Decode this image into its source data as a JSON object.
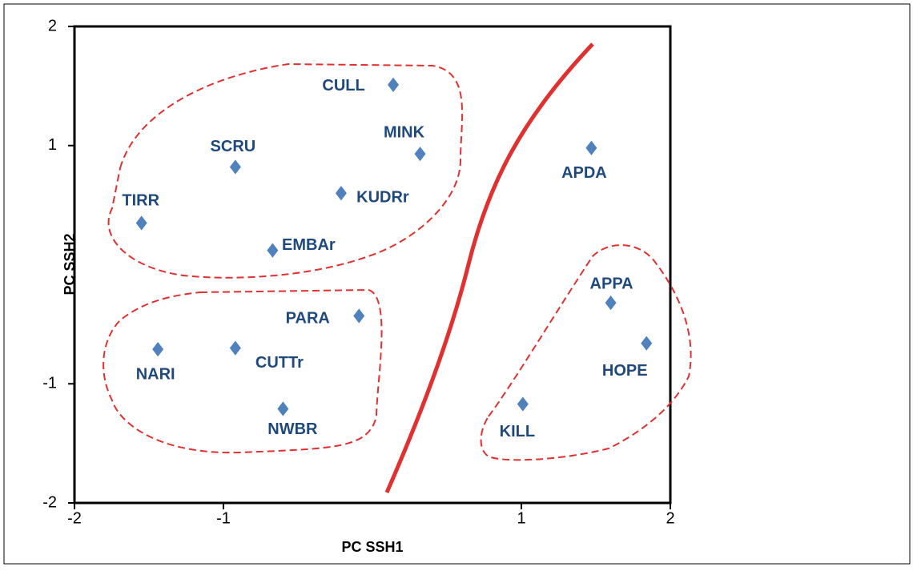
{
  "chart_data": {
    "type": "scatter",
    "x_label": "PC SSH1",
    "y_label": "PC SSH2",
    "labels": [
      "CULL",
      "MINK",
      "SCRU",
      "KUDRr",
      "TIRR",
      "EMBAr",
      "PARA",
      "NARI",
      "CUTTr",
      "NWBR",
      "APDA",
      "APPA",
      "HOPE",
      "KILL"
    ],
    "x": [
      0.14,
      0.32,
      -0.92,
      -0.21,
      -1.55,
      -0.67,
      -0.09,
      -1.44,
      -0.92,
      -0.6,
      1.47,
      1.6,
      1.84,
      1.01
    ],
    "y": [
      1.51,
      0.93,
      0.82,
      0.6,
      0.35,
      0.12,
      -0.43,
      -0.71,
      -0.7,
      -1.21,
      0.98,
      -0.32,
      -0.66,
      -1.17
    ],
    "color": "#4f81bd",
    "xlim": [
      -2,
      2
    ],
    "ylim": [
      -2,
      2
    ],
    "xticks": [
      -2,
      -1,
      1,
      2
    ],
    "yticks": [
      -2,
      -1,
      1,
      2
    ]
  }
}
